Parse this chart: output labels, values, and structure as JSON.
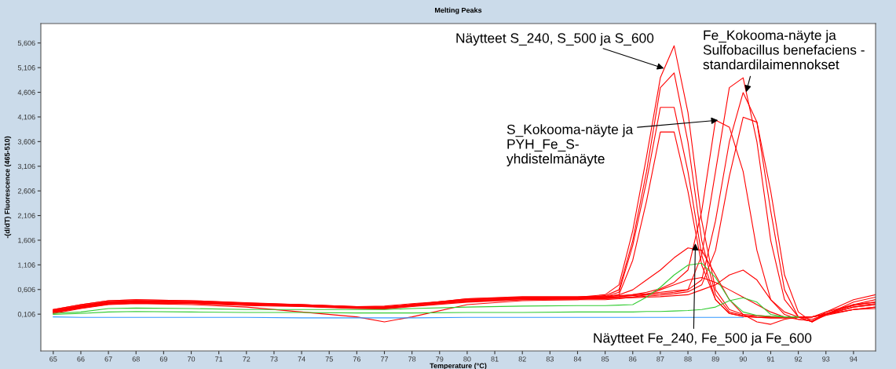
{
  "chart_data": {
    "type": "line",
    "title": "Melting Peaks",
    "xlabel": "Temperature (°C)",
    "ylabel": "-(d/dT) Fluorescence (465-510)",
    "x": [
      65,
      66,
      67,
      68,
      70,
      72,
      74,
      76,
      77,
      78,
      80,
      82,
      84,
      85,
      85.5,
      86,
      86.5,
      87,
      87.5,
      88,
      88.5,
      89,
      89.5,
      90,
      90.5,
      91,
      91.5,
      92,
      92.5,
      93,
      94,
      94.8
    ],
    "series": [
      {
        "color": "#ff0000",
        "values": [
          0.2,
          0.3,
          0.38,
          0.4,
          0.38,
          0.33,
          0.3,
          0.25,
          0.25,
          0.3,
          0.42,
          0.45,
          0.45,
          0.5,
          0.7,
          1.8,
          3.3,
          4.9,
          5.55,
          4.2,
          2.0,
          0.6,
          0.2,
          0.1,
          0.08,
          0.06,
          0.05,
          0.05,
          0.05,
          0.15,
          0.3,
          0.35
        ]
      },
      {
        "color": "#ff0000",
        "values": [
          0.18,
          0.28,
          0.36,
          0.38,
          0.36,
          0.32,
          0.3,
          0.26,
          0.27,
          0.32,
          0.4,
          0.44,
          0.44,
          0.48,
          0.6,
          1.6,
          3.0,
          4.7,
          5.0,
          3.6,
          1.6,
          0.5,
          0.15,
          0.08,
          0.06,
          0.05,
          0.05,
          0.05,
          0.05,
          0.12,
          0.28,
          0.32
        ]
      },
      {
        "color": "#ff0000",
        "values": [
          0.15,
          0.26,
          0.34,
          0.36,
          0.35,
          0.3,
          0.28,
          0.24,
          0.24,
          0.3,
          0.38,
          0.42,
          0.42,
          0.46,
          0.55,
          1.5,
          2.8,
          4.3,
          4.3,
          3.0,
          1.3,
          0.4,
          0.12,
          0.06,
          0.04,
          0.03,
          0.03,
          0.04,
          0.05,
          0.1,
          0.25,
          0.3
        ]
      },
      {
        "color": "#ff0000",
        "values": [
          0.14,
          0.25,
          0.33,
          0.35,
          0.34,
          0.3,
          0.27,
          0.23,
          0.23,
          0.28,
          0.36,
          0.4,
          0.4,
          0.45,
          0.5,
          1.2,
          2.4,
          3.8,
          3.8,
          2.6,
          1.1,
          0.4,
          0.12,
          0.06,
          0.04,
          0.03,
          0.03,
          0.04,
          0.05,
          0.1,
          0.25,
          0.3
        ]
      },
      {
        "color": "#ff0000",
        "values": [
          0.2,
          0.3,
          0.38,
          0.4,
          0.38,
          0.34,
          0.3,
          0.26,
          0.25,
          0.3,
          0.42,
          0.46,
          0.46,
          0.47,
          0.48,
          0.5,
          0.52,
          0.55,
          0.58,
          0.6,
          1.3,
          3.0,
          4.7,
          4.9,
          3.6,
          1.6,
          0.4,
          0.05,
          -0.05,
          0.15,
          0.4,
          0.5
        ]
      },
      {
        "color": "#ff0000",
        "values": [
          0.18,
          0.28,
          0.36,
          0.38,
          0.36,
          0.32,
          0.29,
          0.25,
          0.24,
          0.3,
          0.4,
          0.44,
          0.44,
          0.45,
          0.46,
          0.48,
          0.5,
          0.52,
          0.55,
          0.6,
          0.8,
          2.0,
          3.6,
          4.6,
          4.0,
          2.2,
          0.6,
          0.05,
          -0.05,
          0.1,
          0.35,
          0.45
        ]
      },
      {
        "color": "#ff0000",
        "values": [
          0.16,
          0.26,
          0.34,
          0.36,
          0.35,
          0.31,
          0.28,
          0.24,
          0.23,
          0.28,
          0.38,
          0.42,
          0.42,
          0.43,
          0.44,
          0.45,
          0.47,
          0.49,
          0.52,
          0.56,
          0.7,
          1.4,
          2.9,
          4.1,
          4.0,
          2.6,
          0.9,
          0.15,
          -0.05,
          0.1,
          0.3,
          0.4
        ]
      },
      {
        "color": "#ff0000",
        "values": [
          0.17,
          0.27,
          0.35,
          0.37,
          0.36,
          0.32,
          0.29,
          0.25,
          0.25,
          0.3,
          0.4,
          0.43,
          0.43,
          0.44,
          0.46,
          0.5,
          0.55,
          0.62,
          0.75,
          1.0,
          2.2,
          4.04,
          3.9,
          3.0,
          1.4,
          0.4,
          0.1,
          0.0,
          -0.03,
          0.1,
          0.3,
          0.35
        ]
      },
      {
        "color": "#ff0000",
        "values": [
          0.15,
          0.24,
          0.32,
          0.34,
          0.33,
          0.3,
          0.27,
          0.23,
          0.22,
          0.27,
          0.37,
          0.42,
          0.44,
          0.45,
          0.5,
          0.6,
          0.8,
          1.0,
          1.25,
          1.45,
          1.4,
          0.9,
          0.4,
          0.1,
          -0.05,
          -0.1,
          0.0,
          0.05,
          0.05,
          0.1,
          0.2,
          0.25
        ]
      },
      {
        "color": "#ff0000",
        "values": [
          0.14,
          0.23,
          0.31,
          0.33,
          0.32,
          0.28,
          0.26,
          0.22,
          0.21,
          0.26,
          0.35,
          0.4,
          0.42,
          0.42,
          0.43,
          0.44,
          0.45,
          0.46,
          0.48,
          0.5,
          0.6,
          0.7,
          0.9,
          1.0,
          0.8,
          0.4,
          0.15,
          0.05,
          0.0,
          0.1,
          0.2,
          0.25
        ]
      },
      {
        "color": "#ff0000",
        "values": [
          0.12,
          0.22,
          0.3,
          0.32,
          0.3,
          0.25,
          0.15,
          0.05,
          -0.05,
          0.05,
          0.3,
          0.38,
          0.4,
          0.4,
          0.42,
          0.45,
          0.5,
          0.6,
          0.7,
          0.8,
          0.85,
          0.75,
          0.6,
          0.45,
          0.3,
          0.15,
          0.05,
          0.0,
          -0.03,
          0.08,
          0.2,
          0.22
        ]
      },
      {
        "color": "#33cc33",
        "values": [
          0.12,
          0.15,
          0.22,
          0.23,
          0.22,
          0.2,
          0.2,
          0.2,
          0.2,
          0.22,
          0.25,
          0.27,
          0.28,
          0.28,
          0.29,
          0.3,
          0.45,
          0.65,
          0.9,
          1.1,
          1.14,
          0.85,
          0.4,
          0.15,
          0.08,
          0.06,
          0.05,
          0.05,
          null,
          null,
          null,
          null
        ]
      },
      {
        "color": "#33cc33",
        "values": [
          0.1,
          0.12,
          0.15,
          0.16,
          0.15,
          0.14,
          0.14,
          0.13,
          0.13,
          0.13,
          0.14,
          0.14,
          0.15,
          0.15,
          0.15,
          0.15,
          0.16,
          0.16,
          0.17,
          0.18,
          0.2,
          0.25,
          0.38,
          0.44,
          0.35,
          0.1,
          0.05,
          0.05,
          null,
          null,
          null,
          null
        ]
      },
      {
        "color": "#3399ff",
        "values": [
          0.05,
          0.04,
          0.04,
          0.04,
          0.04,
          0.04,
          0.03,
          0.03,
          0.03,
          0.03,
          0.04,
          0.04,
          0.04,
          0.04,
          0.04,
          0.04,
          0.04,
          0.04,
          0.04,
          0.04,
          0.04,
          0.04,
          0.04,
          0.04,
          null,
          null,
          null,
          null,
          null,
          null,
          null,
          null
        ]
      }
    ],
    "xlim": [
      64.55,
      94.8
    ],
    "ylim": [
      -0.64,
      6.0
    ],
    "xticks": [
      65,
      66,
      67,
      68,
      69,
      70,
      71,
      72,
      73,
      74,
      75,
      76,
      77,
      78,
      79,
      80,
      81,
      82,
      83,
      84,
      85,
      86,
      87,
      88,
      89,
      90,
      91,
      92,
      93,
      94
    ],
    "yticks": [
      {
        "value": 0.106,
        "label": "0,106"
      },
      {
        "value": 0.606,
        "label": "0,606"
      },
      {
        "value": 1.106,
        "label": "1,106"
      },
      {
        "value": 1.606,
        "label": "1,606"
      },
      {
        "value": 2.106,
        "label": "2,106"
      },
      {
        "value": 2.606,
        "label": "2,606"
      },
      {
        "value": 3.106,
        "label": "3,106"
      },
      {
        "value": 3.606,
        "label": "3,606"
      },
      {
        "value": 4.106,
        "label": "4,106"
      },
      {
        "value": 4.606,
        "label": "4,606"
      },
      {
        "value": 5.106,
        "label": "5,106"
      },
      {
        "value": 5.606,
        "label": "5,606"
      }
    ],
    "annotations": [
      {
        "text": "Näytteet S_240, S_500 ja S_600",
        "x": 87.13,
        "y": 5.09
      },
      {
        "text": "Fe_Kokooma-näyte ja\nSulfobacillus benefaciens -\nstandardilaimennokset",
        "x": 90.11,
        "y": 4.61
      },
      {
        "text": "S_Kokooma-näyte ja\nPYH_Fe_S-\nyhdistelmänäyte",
        "x": 89.09,
        "y": 4.04
      },
      {
        "text": "Näytteet Fe_240, Fe_500 ja Fe_600",
        "x": 88.27,
        "y": 1.54
      }
    ]
  }
}
